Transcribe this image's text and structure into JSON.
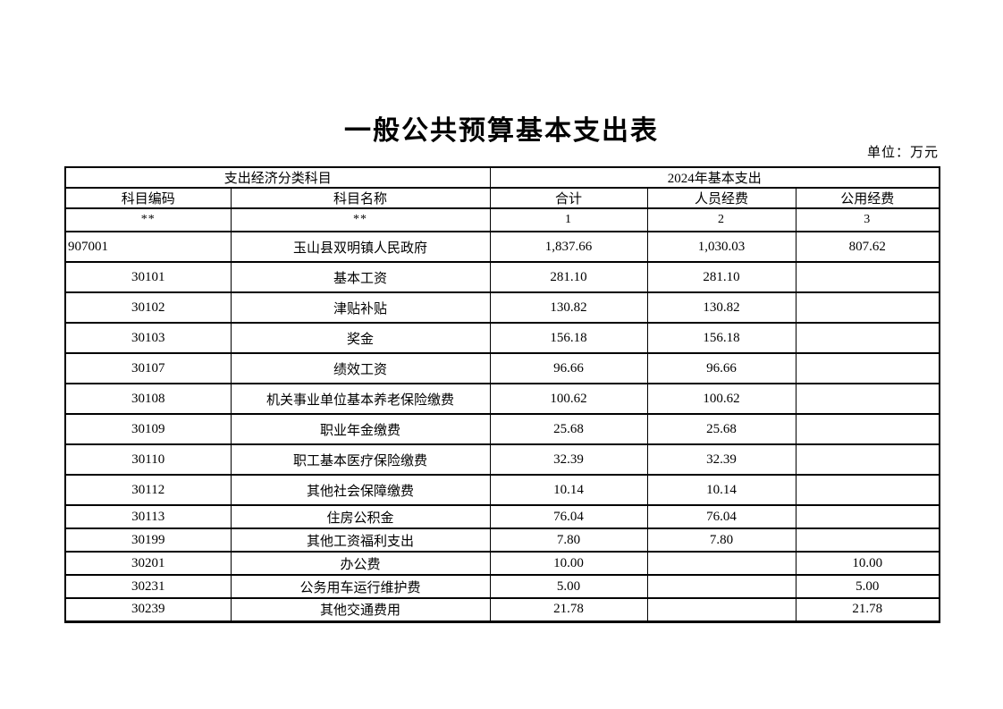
{
  "page": {
    "title": "一般公共预算基本支出表",
    "unit_note": "单位：万元"
  },
  "table": {
    "header": {
      "group_left": "支出经济分类科目",
      "group_right": "2024年基本支出",
      "columns": {
        "code": "科目编码",
        "name": "科目名称",
        "total": "合计",
        "personnel": "人员经费",
        "public": "公用经费"
      },
      "marker_row": {
        "code": "**",
        "name": "**",
        "total": "1",
        "personnel": "2",
        "public": "3"
      }
    },
    "rows": [
      {
        "code": "907001",
        "name": "玉山县双明镇人民政府",
        "total": "1,837.66",
        "personnel": "1,030.03",
        "public": "807.62",
        "size": "tall",
        "code_align": "left"
      },
      {
        "code": "30101",
        "name": "基本工资",
        "total": "281.10",
        "personnel": "281.10",
        "public": "",
        "size": "tall",
        "code_align": "center"
      },
      {
        "code": "30102",
        "name": "津贴补贴",
        "total": "130.82",
        "personnel": "130.82",
        "public": "",
        "size": "tall",
        "code_align": "center"
      },
      {
        "code": "30103",
        "name": "奖金",
        "total": "156.18",
        "personnel": "156.18",
        "public": "",
        "size": "tall",
        "code_align": "center"
      },
      {
        "code": "30107",
        "name": "绩效工资",
        "total": "96.66",
        "personnel": "96.66",
        "public": "",
        "size": "tall",
        "code_align": "center"
      },
      {
        "code": "30108",
        "name": "机关事业单位基本养老保险缴费",
        "total": "100.62",
        "personnel": "100.62",
        "public": "",
        "size": "tall",
        "code_align": "center"
      },
      {
        "code": "30109",
        "name": "职业年金缴费",
        "total": "25.68",
        "personnel": "25.68",
        "public": "",
        "size": "tall",
        "code_align": "center"
      },
      {
        "code": "30110",
        "name": "职工基本医疗保险缴费",
        "total": "32.39",
        "personnel": "32.39",
        "public": "",
        "size": "tall",
        "code_align": "center"
      },
      {
        "code": "30112",
        "name": "其他社会保障缴费",
        "total": "10.14",
        "personnel": "10.14",
        "public": "",
        "size": "tall",
        "code_align": "center"
      },
      {
        "code": "30113",
        "name": "住房公积金",
        "total": "76.04",
        "personnel": "76.04",
        "public": "",
        "size": "short",
        "code_align": "center"
      },
      {
        "code": "30199",
        "name": "其他工资福利支出",
        "total": "7.80",
        "personnel": "7.80",
        "public": "",
        "size": "short",
        "code_align": "center"
      },
      {
        "code": "30201",
        "name": "办公费",
        "total": "10.00",
        "personnel": "",
        "public": "10.00",
        "size": "short",
        "code_align": "center"
      },
      {
        "code": "30231",
        "name": "公务用车运行维护费",
        "total": "5.00",
        "personnel": "",
        "public": "5.00",
        "size": "short",
        "code_align": "center"
      },
      {
        "code": "30239",
        "name": "其他交通费用",
        "total": "21.78",
        "personnel": "",
        "public": "21.78",
        "size": "short",
        "code_align": "center"
      }
    ]
  }
}
